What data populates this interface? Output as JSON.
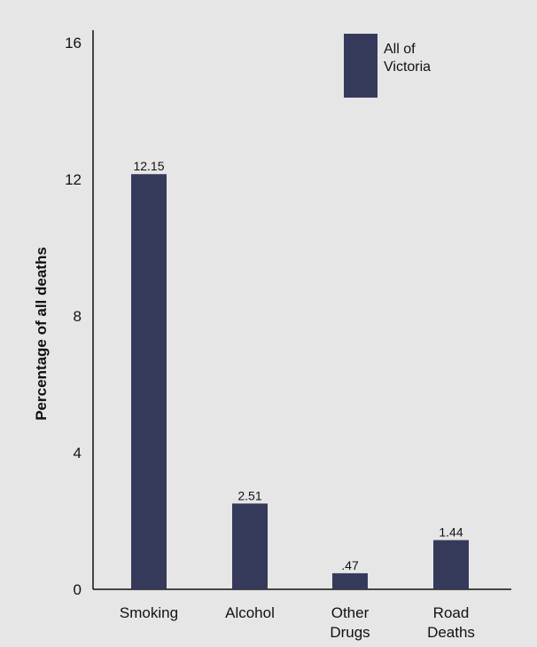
{
  "chart_data": {
    "type": "bar",
    "title": "",
    "xlabel": "",
    "ylabel": "Percentage of all deaths",
    "ylim": [
      0,
      16
    ],
    "yticks": [
      0,
      4,
      8,
      12,
      16
    ],
    "grid": false,
    "legend_position": "top-right",
    "categories": [
      {
        "lines": [
          "Smoking"
        ]
      },
      {
        "lines": [
          "Alcohol"
        ]
      },
      {
        "lines": [
          "Other",
          "Drugs"
        ]
      },
      {
        "lines": [
          "Road",
          "Deaths"
        ]
      }
    ],
    "series": [
      {
        "name_lines": [
          "All of",
          "Victoria"
        ],
        "color": "#363a5a",
        "values": [
          12.15,
          2.51,
          0.47,
          1.44
        ],
        "value_labels": [
          "12.15",
          "2.51",
          ".47",
          "1.44"
        ]
      }
    ]
  }
}
